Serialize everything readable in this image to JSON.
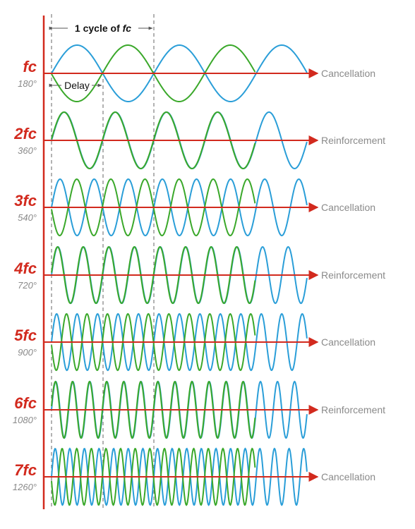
{
  "header": {
    "cycle_label_prefix": "1 cycle of ",
    "cycle_label_fc": "fc",
    "delay_label": "Delay"
  },
  "colors": {
    "axis": "#d22a1e",
    "wave_original": "#2a9ed8",
    "wave_delayed": "#3aa82a",
    "result_text": "#8a8a8a",
    "degree_text": "#8a8a8a",
    "guide": "#666666"
  },
  "rows": [
    {
      "multiple": "fc",
      "degrees": "180°",
      "result": "Cancellation",
      "harmonic": 1
    },
    {
      "multiple": "2fc",
      "degrees": "360°",
      "result": "Reinforcement",
      "harmonic": 2
    },
    {
      "multiple": "3fc",
      "degrees": "540°",
      "result": "Cancellation",
      "harmonic": 3
    },
    {
      "multiple": "4fc",
      "degrees": "720°",
      "result": "Reinforcement",
      "harmonic": 4
    },
    {
      "multiple": "5fc",
      "degrees": "900°",
      "result": "Cancellation",
      "harmonic": 5
    },
    {
      "multiple": "6fc",
      "degrees": "1080°",
      "result": "Reinforcement",
      "harmonic": 6
    },
    {
      "multiple": "7fc",
      "degrees": "1260°",
      "result": "Cancellation",
      "harmonic": 7
    }
  ]
}
